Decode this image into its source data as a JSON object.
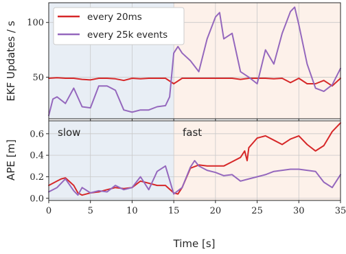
{
  "colors": {
    "every_20ms": "#d62728",
    "every_25k": "#9467bd",
    "slow_bg": "#e8eef5",
    "fast_bg": "#fdf1ea",
    "grid": "#c8c8c8",
    "frame": "#262626"
  },
  "legend": {
    "every_20ms": "every 20ms",
    "every_25k": "every 25k events"
  },
  "regions": {
    "slow": "slow",
    "fast": "fast"
  },
  "chart_data": [
    {
      "type": "line",
      "ylabel": "EKF Updates / s",
      "xlim": [
        0,
        35
      ],
      "ylim": [
        12,
        118
      ],
      "yticks": [
        "50",
        "100"
      ],
      "grid": true,
      "legend_position": "top-left",
      "shaded_regions": [
        {
          "name": "slow",
          "x": [
            0,
            15
          ]
        },
        {
          "name": "fast",
          "x": [
            15,
            35
          ]
        }
      ],
      "series": [
        {
          "name": "every 20ms",
          "x": [
            0,
            1,
            2,
            3,
            4,
            5,
            6,
            7,
            8,
            9,
            10,
            11,
            12,
            13,
            14,
            15,
            16,
            17,
            18,
            19,
            20,
            21,
            22,
            23,
            24,
            25,
            26,
            27,
            28,
            29,
            30,
            31,
            32,
            33,
            34,
            35
          ],
          "y": [
            49,
            49.5,
            49,
            49,
            48,
            47.5,
            49,
            49,
            48.5,
            47,
            49,
            48.5,
            49,
            49,
            49,
            44,
            49,
            49,
            49,
            49,
            49,
            49,
            49,
            48,
            49,
            49,
            49,
            48.5,
            49,
            45,
            49,
            44,
            44,
            47,
            42,
            49
          ]
        },
        {
          "name": "every 25k events",
          "x": [
            0,
            0.5,
            1,
            2,
            3,
            4,
            5,
            6,
            7,
            8,
            9,
            10,
            11,
            12,
            13,
            14,
            14.5,
            15,
            15.5,
            16,
            17,
            18,
            19,
            20,
            20.5,
            21,
            22,
            23,
            24,
            25,
            26,
            27,
            28,
            29,
            29.5,
            30,
            31,
            32,
            33,
            34,
            35
          ],
          "y": [
            15,
            30,
            32,
            26,
            40,
            23,
            22,
            42,
            42,
            38,
            20,
            18,
            20,
            20,
            23,
            24,
            32,
            72,
            78,
            72,
            65,
            55,
            85,
            105,
            109,
            85,
            90,
            55,
            50,
            44,
            75,
            62,
            90,
            110,
            114,
            98,
            62,
            40,
            37,
            43,
            58
          ]
        }
      ]
    },
    {
      "type": "line",
      "xlabel": "Time [s]",
      "ylabel": "APE [m]",
      "xlim": [
        0,
        35
      ],
      "ylim": [
        -0.02,
        0.72
      ],
      "xticks": [
        "0",
        "5",
        "10",
        "15",
        "20",
        "25",
        "30",
        "35"
      ],
      "yticks": [
        "0.0",
        "0.2",
        "0.4",
        "0.6"
      ],
      "grid": true,
      "shaded_regions": [
        {
          "name": "slow",
          "x": [
            0,
            15
          ]
        },
        {
          "name": "fast",
          "x": [
            15,
            35
          ]
        }
      ],
      "annotations": [
        "slow",
        "fast"
      ],
      "series": [
        {
          "name": "every 20ms",
          "x": [
            0,
            1,
            1.5,
            2,
            3,
            3.5,
            4,
            5,
            6,
            7,
            8,
            9,
            10,
            11,
            12,
            13,
            14,
            15,
            15.5,
            16,
            17,
            18,
            19,
            20,
            21,
            22,
            23,
            23.5,
            23.8,
            24,
            25,
            26,
            27,
            28,
            29,
            30,
            31,
            32,
            33,
            34,
            35
          ],
          "y": [
            0.12,
            0.16,
            0.18,
            0.19,
            0.12,
            0.05,
            0.03,
            0.05,
            0.06,
            0.08,
            0.1,
            0.09,
            0.1,
            0.16,
            0.14,
            0.12,
            0.12,
            0.05,
            0.04,
            0.1,
            0.28,
            0.31,
            0.3,
            0.3,
            0.3,
            0.34,
            0.38,
            0.44,
            0.35,
            0.47,
            0.56,
            0.58,
            0.54,
            0.5,
            0.55,
            0.58,
            0.5,
            0.44,
            0.49,
            0.62,
            0.7
          ]
        },
        {
          "name": "every 25k events",
          "x": [
            0,
            1,
            2,
            3,
            3.5,
            4,
            5,
            6,
            7,
            8,
            9,
            10,
            11,
            12,
            13,
            14,
            15,
            16,
            17,
            17.5,
            18,
            19,
            20,
            21,
            22,
            23,
            24,
            25,
            26,
            27,
            28,
            29,
            30,
            31,
            32,
            33,
            34,
            35
          ],
          "y": [
            0.06,
            0.1,
            0.18,
            0.07,
            0.03,
            0.1,
            0.05,
            0.07,
            0.06,
            0.12,
            0.08,
            0.1,
            0.2,
            0.08,
            0.25,
            0.3,
            0.04,
            0.1,
            0.29,
            0.35,
            0.3,
            0.26,
            0.24,
            0.21,
            0.22,
            0.16,
            0.18,
            0.2,
            0.22,
            0.25,
            0.26,
            0.27,
            0.27,
            0.26,
            0.25,
            0.15,
            0.1,
            0.22
          ]
        }
      ]
    }
  ]
}
